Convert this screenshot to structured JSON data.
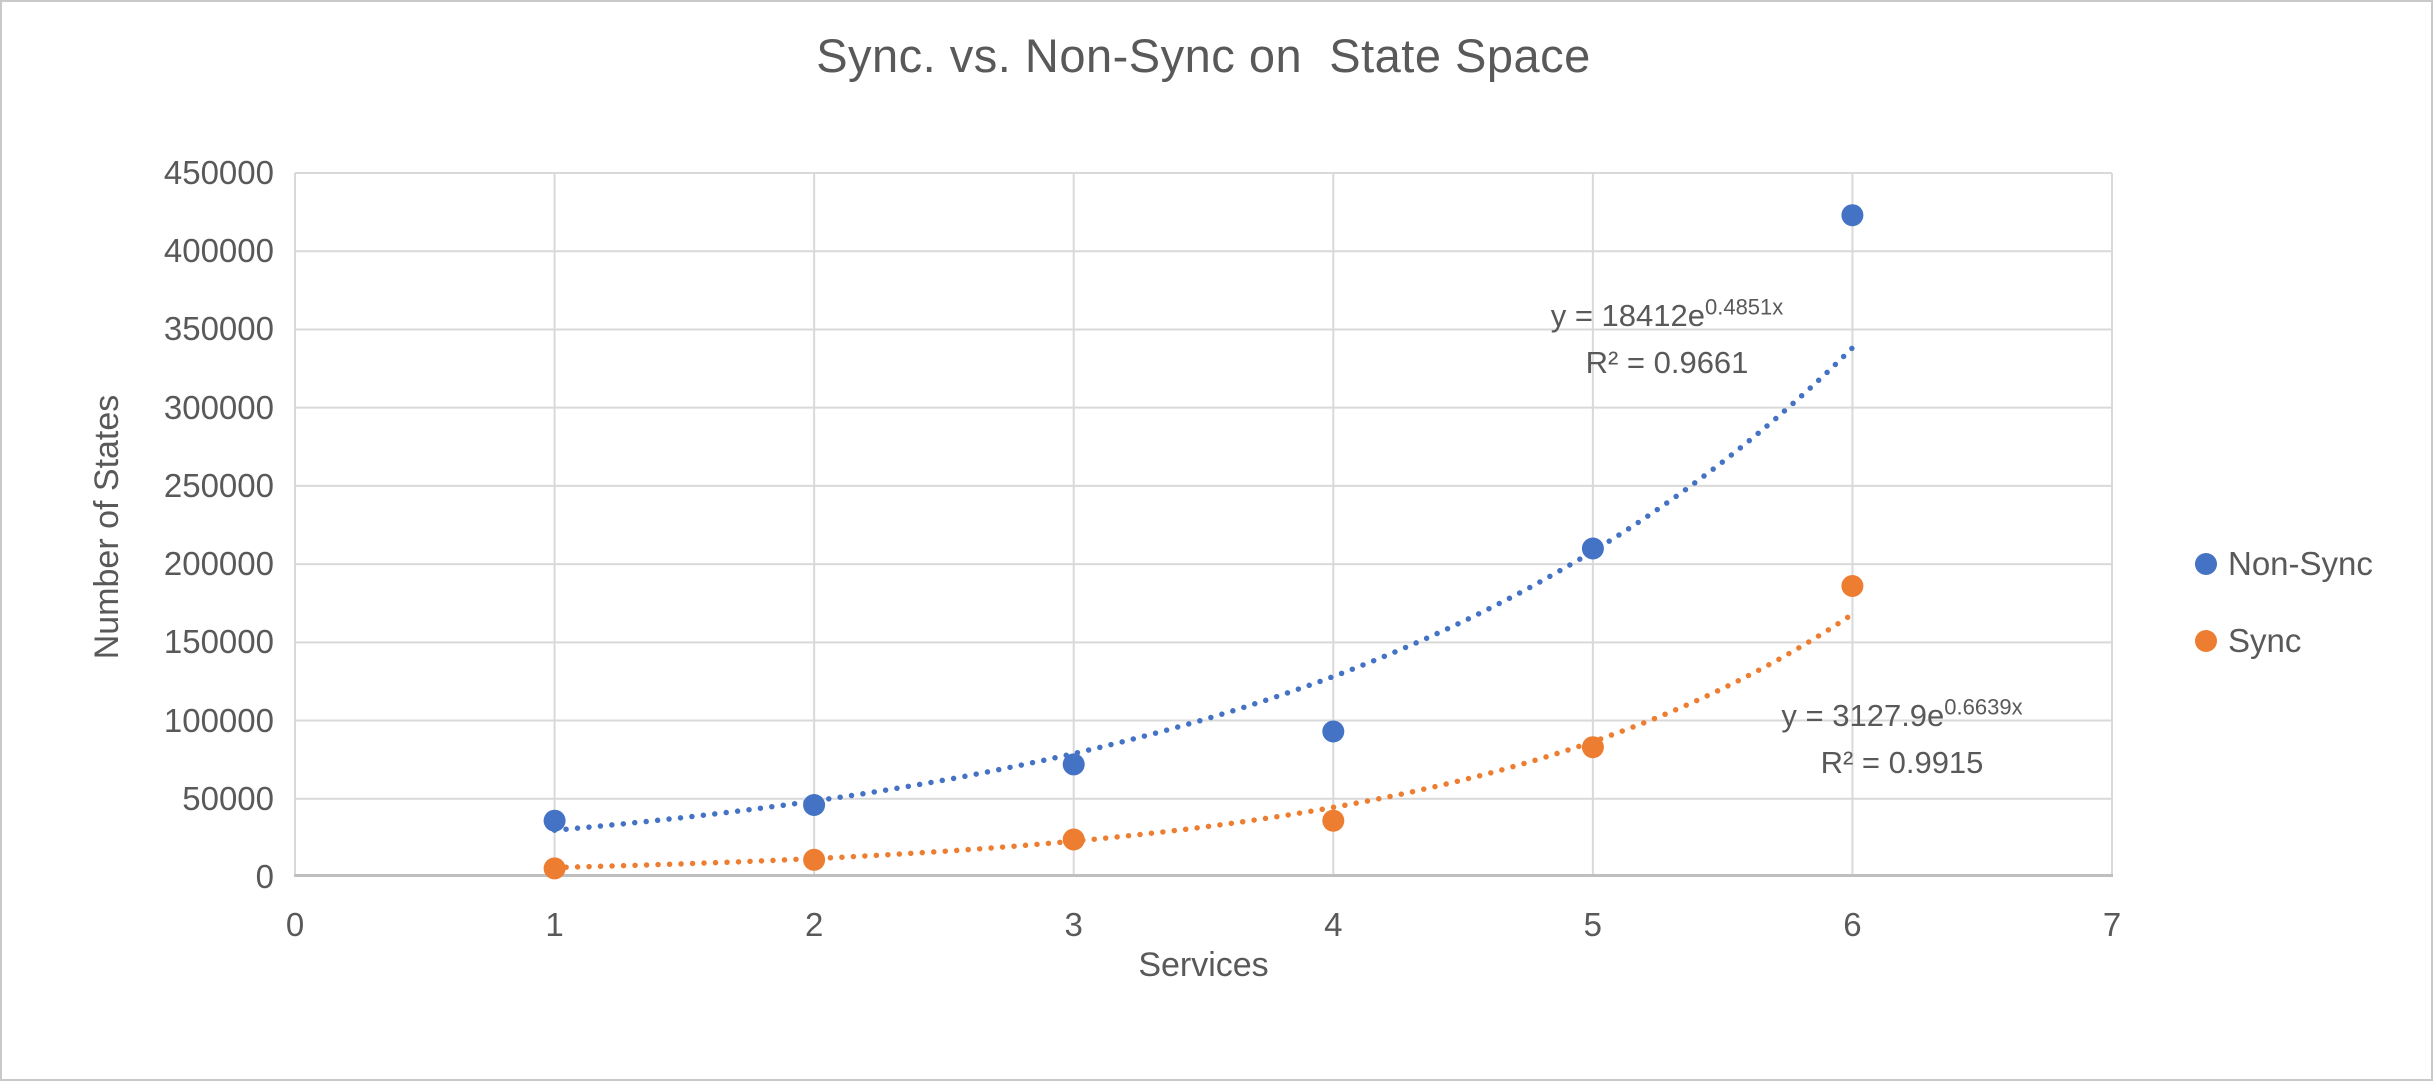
{
  "window": {
    "background": "#ffffff",
    "frame_border": "#c9c9c9"
  },
  "chart_data": {
    "type": "scatter",
    "title": "Sync. vs. Non-Sync on  State Space",
    "xlabel": "Services",
    "ylabel": "Number of States",
    "xlim": [
      0,
      7
    ],
    "ylim": [
      0,
      450000
    ],
    "x_ticks": [
      0,
      1,
      2,
      3,
      4,
      5,
      6,
      7
    ],
    "y_ticks": [
      0,
      50000,
      100000,
      150000,
      200000,
      250000,
      300000,
      350000,
      400000,
      450000
    ],
    "grid": true,
    "legend_position": "right",
    "x": [
      1,
      2,
      3,
      4,
      5,
      6
    ],
    "series": [
      {
        "name": "Non-Sync",
        "color": "#4472C4",
        "marker": "circle",
        "values": [
          36000,
          46000,
          72000,
          93000,
          210000,
          423000
        ],
        "trendline": {
          "type": "exponential",
          "style": "dotted",
          "coef_a": 18412,
          "coef_b": 0.4851,
          "r_squared": 0.9661,
          "equation_base": "y = 18412e",
          "equation_exponent": "0.4851x",
          "r2_label": "R² = 0.9661"
        }
      },
      {
        "name": "Sync",
        "color": "#ED7D31",
        "marker": "circle",
        "values": [
          5500,
          11000,
          24000,
          36000,
          83000,
          186000
        ],
        "trendline": {
          "type": "exponential",
          "style": "dotted",
          "coef_a": 3127.9,
          "coef_b": 0.6639,
          "r_squared": 0.9915,
          "equation_base": "y = 3127.9e",
          "equation_exponent": "0.6639x",
          "r2_label": "R² = 0.9915"
        }
      }
    ],
    "colors": {
      "gridline": "#D9D9D9",
      "axis_line": "#BFBFBF",
      "text": "#595959"
    }
  }
}
